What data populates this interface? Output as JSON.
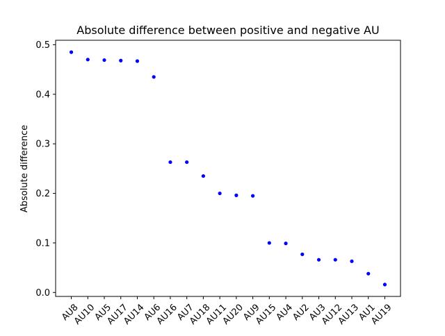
{
  "chart_data": {
    "type": "scatter",
    "title": "Absolute difference between positive and negative AU",
    "xlabel": "",
    "ylabel": "Absolute difference",
    "categories": [
      "AU8",
      "AU10",
      "AU5",
      "AU17",
      "AU14",
      "AU6",
      "AU16",
      "AU7",
      "AU18",
      "AU11",
      "AU20",
      "AU9",
      "AU15",
      "AU4",
      "AU2",
      "AU3",
      "AU12",
      "AU13",
      "AU1",
      "AU19"
    ],
    "values": [
      0.485,
      0.47,
      0.469,
      0.468,
      0.467,
      0.435,
      0.263,
      0.263,
      0.235,
      0.2,
      0.196,
      0.195,
      0.1,
      0.099,
      0.077,
      0.066,
      0.066,
      0.063,
      0.038,
      0.016
    ],
    "ylim": [
      -0.008,
      0.509
    ],
    "yticks": [
      "0.0",
      "0.1",
      "0.2",
      "0.3",
      "0.4",
      "0.5"
    ],
    "grid": false,
    "legend": "none",
    "marker_color": "#0000ff"
  }
}
